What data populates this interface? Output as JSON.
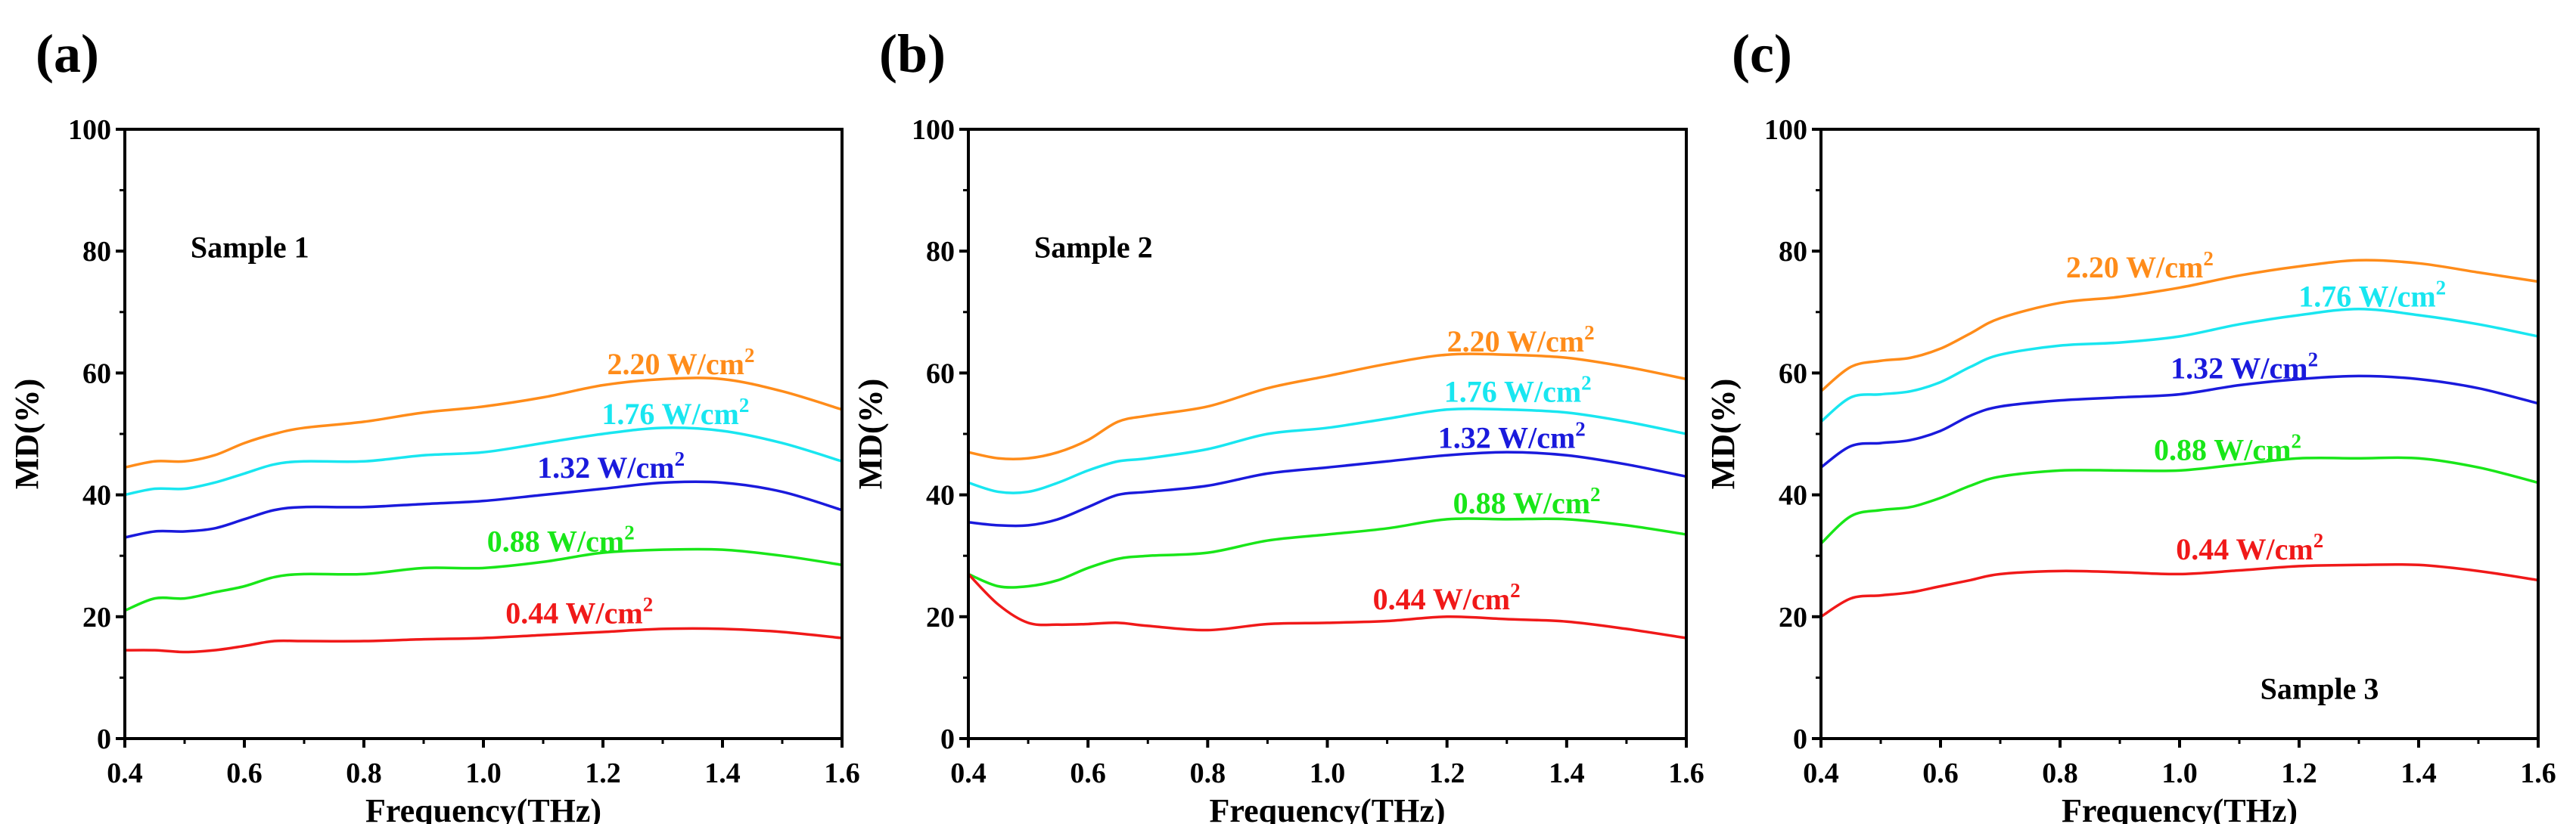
{
  "chart_data": [
    {
      "type": "line",
      "panel_label": "(a)",
      "annotation": "Sample 1",
      "xlabel": "Frequency(THz)",
      "ylabel": "MD(%)",
      "xlim": [
        0.4,
        1.6
      ],
      "ylim": [
        0,
        100
      ],
      "xticks": [
        "0.4",
        "0.6",
        "0.8",
        "1.0",
        "1.2",
        "1.4",
        "1.6"
      ],
      "yticks": [
        "0",
        "20",
        "40",
        "60",
        "80",
        "100"
      ],
      "x": [
        0.4,
        0.45,
        0.5,
        0.55,
        0.6,
        0.65,
        0.7,
        0.8,
        0.9,
        1.0,
        1.1,
        1.2,
        1.3,
        1.4,
        1.5,
        1.6
      ],
      "series": [
        {
          "name": "2.20 W/cm²",
          "label_main": "2.20 W/cm",
          "label_sup": "2",
          "color": "#ff8c1a",
          "values": [
            44.5,
            45.5,
            45.5,
            46.5,
            48.5,
            50,
            51,
            52,
            53.5,
            54.5,
            56,
            58,
            59,
            59,
            57,
            54
          ]
        },
        {
          "name": "1.76 W/cm²",
          "label_main": "1.76 W/cm",
          "label_sup": "2",
          "color": "#19e6f0",
          "values": [
            40,
            41,
            41,
            42,
            43.5,
            45,
            45.5,
            45.5,
            46.5,
            47,
            48.5,
            50,
            51,
            50.5,
            48.5,
            45.5
          ]
        },
        {
          "name": "1.32 W/cm²",
          "label_main": "1.32 W/cm",
          "label_sup": "2",
          "color": "#1a1adc",
          "values": [
            33,
            34,
            34,
            34.5,
            36,
            37.5,
            38,
            38,
            38.5,
            39,
            40,
            41,
            42,
            42,
            40.5,
            37.5
          ]
        },
        {
          "name": "0.88 W/cm²",
          "label_main": "0.88 W/cm",
          "label_sup": "2",
          "color": "#19e619",
          "values": [
            21,
            23,
            23,
            24,
            25,
            26.5,
            27,
            27,
            28,
            28,
            29,
            30.5,
            31,
            31,
            30,
            28.5
          ]
        },
        {
          "name": "0.44 W/cm²",
          "label_main": "0.44 W/cm",
          "label_sup": "2",
          "color": "#f01919",
          "values": [
            14.5,
            14.5,
            14.2,
            14.5,
            15.2,
            16,
            16,
            16,
            16.3,
            16.5,
            17,
            17.5,
            18,
            18,
            17.5,
            16.5
          ]
        }
      ]
    },
    {
      "type": "line",
      "panel_label": "(b)",
      "annotation": "Sample 2",
      "xlabel": "Frequency(THz)",
      "ylabel": "MD(%)",
      "xlim": [
        0.4,
        1.6
      ],
      "ylim": [
        0,
        100
      ],
      "xticks": [
        "0.4",
        "0.6",
        "0.8",
        "1.0",
        "1.2",
        "1.4",
        "1.6"
      ],
      "yticks": [
        "0",
        "20",
        "40",
        "60",
        "80",
        "100"
      ],
      "x": [
        0.4,
        0.45,
        0.5,
        0.55,
        0.6,
        0.65,
        0.7,
        0.8,
        0.9,
        1.0,
        1.1,
        1.2,
        1.3,
        1.4,
        1.5,
        1.6
      ],
      "series": [
        {
          "name": "2.20 W/cm²",
          "label_main": "2.20 W/cm",
          "label_sup": "2",
          "color": "#ff8c1a",
          "values": [
            47,
            46,
            46,
            47,
            49,
            52,
            53,
            54.5,
            57.5,
            59.5,
            61.5,
            63,
            63,
            62.5,
            61,
            59
          ]
        },
        {
          "name": "1.76 W/cm²",
          "label_main": "1.76 W/cm",
          "label_sup": "2",
          "color": "#19e6f0",
          "values": [
            42,
            40.5,
            40.5,
            42,
            44,
            45.5,
            46,
            47.5,
            50,
            51,
            52.5,
            54,
            54,
            53.5,
            52,
            50
          ]
        },
        {
          "name": "1.32 W/cm²",
          "label_main": "1.32 W/cm",
          "label_sup": "2",
          "color": "#1a1adc",
          "values": [
            35.5,
            35,
            35,
            36,
            38,
            40,
            40.5,
            41.5,
            43.5,
            44.5,
            45.5,
            46.5,
            47,
            46.5,
            45,
            43
          ]
        },
        {
          "name": "0.88 W/cm²",
          "label_main": "0.88 W/cm",
          "label_sup": "2",
          "color": "#19e619",
          "values": [
            27,
            25,
            25,
            26,
            28,
            29.5,
            30,
            30.5,
            32.5,
            33.5,
            34.5,
            36,
            36,
            36,
            35,
            33.5
          ]
        },
        {
          "name": "0.44 W/cm²",
          "label_main": "0.44 W/cm",
          "label_sup": "2",
          "color": "#f01919",
          "values": [
            27,
            22,
            19,
            18.7,
            18.8,
            19,
            18.5,
            17.8,
            18.8,
            19,
            19.3,
            20,
            19.6,
            19.2,
            18,
            16.5
          ]
        }
      ]
    },
    {
      "type": "line",
      "panel_label": "(c)",
      "annotation": "Sample 3",
      "xlabel": "Frequency(THz)",
      "ylabel": "MD(%)",
      "xlim": [
        0.4,
        1.6
      ],
      "ylim": [
        0,
        100
      ],
      "xticks": [
        "0.4",
        "0.6",
        "0.8",
        "1.0",
        "1.2",
        "1.4",
        "1.6"
      ],
      "yticks": [
        "0",
        "20",
        "40",
        "60",
        "80",
        "100"
      ],
      "x": [
        0.4,
        0.45,
        0.5,
        0.55,
        0.6,
        0.65,
        0.7,
        0.8,
        0.9,
        1.0,
        1.1,
        1.2,
        1.3,
        1.4,
        1.5,
        1.6
      ],
      "series": [
        {
          "name": "2.20 W/cm²",
          "label_main": "2.20 W/cm",
          "label_sup": "2",
          "color": "#ff8c1a",
          "values": [
            57,
            61,
            62,
            62.5,
            64,
            66.5,
            69,
            71.5,
            72.5,
            74,
            76,
            77.5,
            78.5,
            78,
            76.5,
            75
          ]
        },
        {
          "name": "1.76 W/cm²",
          "label_main": "1.76 W/cm",
          "label_sup": "2",
          "color": "#19e6f0",
          "values": [
            52,
            56,
            56.5,
            57,
            58.5,
            61,
            63,
            64.5,
            65,
            66,
            68,
            69.5,
            70.5,
            69.5,
            68,
            66
          ]
        },
        {
          "name": "1.32 W/cm²",
          "label_main": "1.32 W/cm",
          "label_sup": "2",
          "color": "#1a1adc",
          "values": [
            44.5,
            48,
            48.5,
            49,
            50.5,
            53,
            54.5,
            55.5,
            56,
            56.5,
            58,
            59,
            59.5,
            59,
            57.5,
            55
          ]
        },
        {
          "name": "0.88 W/cm²",
          "label_main": "0.88 W/cm",
          "label_sup": "2",
          "color": "#19e619",
          "values": [
            32,
            36.5,
            37.5,
            38,
            39.5,
            41.5,
            43,
            44,
            44,
            44,
            45,
            46,
            46,
            46,
            44.5,
            42
          ]
        },
        {
          "name": "0.44 W/cm²",
          "label_main": "0.44 W/cm",
          "label_sup": "2",
          "color": "#f01919",
          "values": [
            20,
            23,
            23.5,
            24,
            25,
            26,
            27,
            27.5,
            27.3,
            27,
            27.6,
            28.3,
            28.5,
            28.5,
            27.5,
            26
          ]
        }
      ]
    }
  ]
}
